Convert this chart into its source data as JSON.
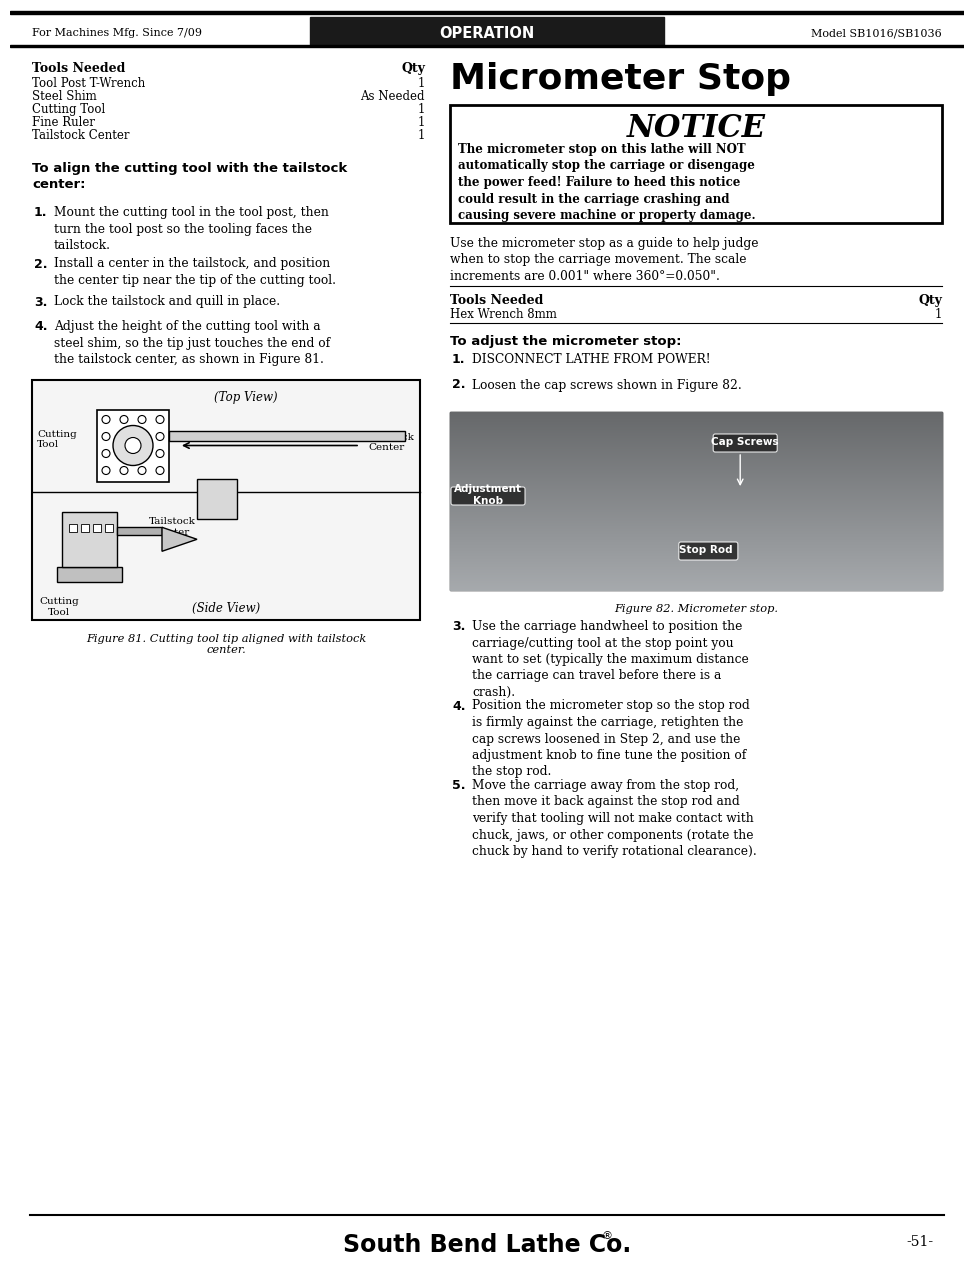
{
  "header_left": "For Machines Mfg. Since 7/09",
  "header_center": "OPERATION",
  "header_right": "Model SB1016/SB1036",
  "title": "Micrometer Stop",
  "notice_title": "NOTICE",
  "notice_body": "The micrometer stop on this lathe will NOT\nautomatically stop the carriage or disengage\nthe power feed! Failure to heed this notice\ncould result in the carriage crashing and\ncausing severe machine or property damage.",
  "tools_needed_left_header": "Tools Needed",
  "tools_needed_left_qty": "Qty",
  "tools_left": [
    [
      "Tool Post T-Wrench",
      "1"
    ],
    [
      "Steel Shim",
      "As Needed"
    ],
    [
      "Cutting Tool",
      "1"
    ],
    [
      "Fine Ruler",
      "1"
    ],
    [
      "Tailstock Center",
      "1"
    ]
  ],
  "section_heading_left": "To align the cutting tool with the tailstock\ncenter:",
  "steps_left": [
    [
      "1.",
      "Mount the cutting tool in the tool post, then\nturn the tool post so the tooling faces the\ntailstock."
    ],
    [
      "2.",
      "Install a center in the tailstock, and position\nthe center tip near the tip of the cutting tool."
    ],
    [
      "3.",
      "Lock the tailstock and quill in place."
    ],
    [
      "4.",
      "Adjust the height of the cutting tool with a\nsteel shim, so the tip just touches the end of\nthe tailstock center, as shown in Figure 81."
    ]
  ],
  "figure81_caption": "Figure 81. Cutting tool tip aligned with tailstock\ncenter.",
  "micrometer_text1": "Use the micrometer stop as a guide to help judge\nwhen to stop the carriage movement. The scale\nincrements are 0.001\" where 360°=0.050\".",
  "tools_needed_right_header": "Tools Needed",
  "tools_needed_right_qty": "Qty",
  "tools_right": [
    [
      "Hex Wrench 8mm",
      "1"
    ]
  ],
  "section_heading_right": "To adjust the micrometer stop:",
  "steps_right_pre": [
    [
      "1.",
      "DISCONNECT LATHE FROM POWER!"
    ],
    [
      "2.",
      "Loosen the cap screws shown in Figure 82."
    ]
  ],
  "steps_right_post": [
    [
      "3.",
      "Use the carriage handwheel to position the\ncarriage/cutting tool at the stop point you\nwant to set (typically the maximum distance\nthe carriage can travel before there is a\ncrash)."
    ],
    [
      "4.",
      "Position the micrometer stop so the stop rod\nis firmly against the carriage, retighten the\ncap screws loosened in Step 2, and use the\nadjustment knob to fine tune the position of\nthe stop rod."
    ],
    [
      "5.",
      "Move the carriage away from the stop rod,\nthen move it back against the stop rod and\nverify that tooling will not make contact with\nchuck, jaws, or other components (rotate the\nchuck by hand to verify rotational clearance)."
    ]
  ],
  "figure82_caption": "Figure 82. Micrometer stop.",
  "footer_brand": "South Bend Lathe Co.",
  "footer_reg": "®",
  "footer_page": "-51-",
  "bg_color": "#ffffff",
  "header_bg": "#1a1a1a",
  "header_text_color": "#ffffff",
  "body_text_color": "#000000"
}
